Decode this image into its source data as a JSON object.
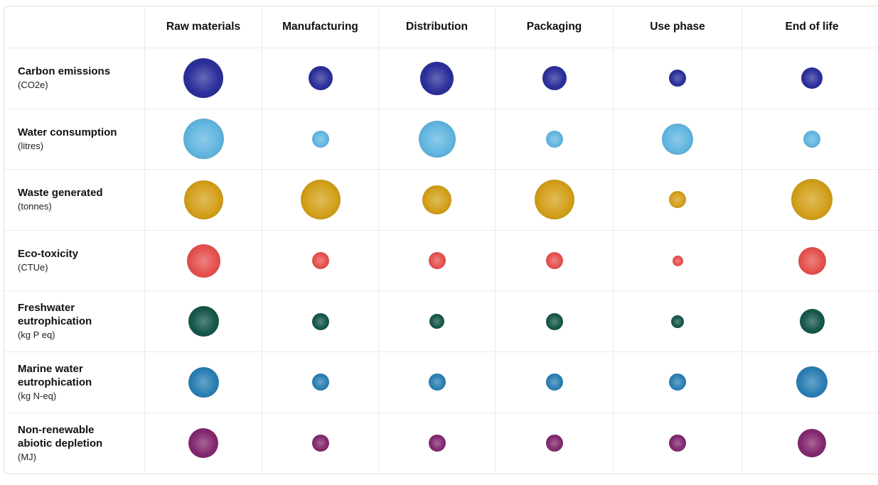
{
  "chart_data": {
    "type": "bubble-matrix",
    "columns": [
      "Raw materials",
      "Manufacturing",
      "Distribution",
      "Packaging",
      "Use phase",
      "End of life"
    ],
    "rows": [
      {
        "title": "Carbon emissions",
        "unit": "(CO2e)",
        "color": "#2b2f9a",
        "values": [
          56,
          34,
          47,
          34,
          24,
          30
        ]
      },
      {
        "title": "Water consumption",
        "unit": "(litres)",
        "color": "#62b6e0",
        "values": [
          57,
          24,
          52,
          24,
          44,
          24
        ]
      },
      {
        "title": "Waste generated",
        "unit": "(tonnes)",
        "color": "#d3a01a",
        "values": [
          55,
          56,
          41,
          56,
          24,
          58
        ]
      },
      {
        "title": "Eco-toxicity",
        "unit": "(CTUe)",
        "color": "#e4514e",
        "values": [
          47,
          24,
          24,
          24,
          15,
          39
        ]
      },
      {
        "title": "Freshwater\neutrophication",
        "unit": "(kg P eq)",
        "color": "#16574a",
        "values": [
          43,
          24,
          21,
          24,
          18,
          35
        ]
      },
      {
        "title": "Marine water\neutrophication",
        "unit": "(kg N-eq)",
        "color": "#2a7fb3",
        "values": [
          43,
          24,
          24,
          24,
          24,
          44
        ]
      },
      {
        "title": "Non-renewable\nabiotic depletion",
        "unit": "(MJ)",
        "color": "#83286f",
        "values": [
          42,
          24,
          24,
          24,
          24,
          40
        ]
      }
    ]
  }
}
